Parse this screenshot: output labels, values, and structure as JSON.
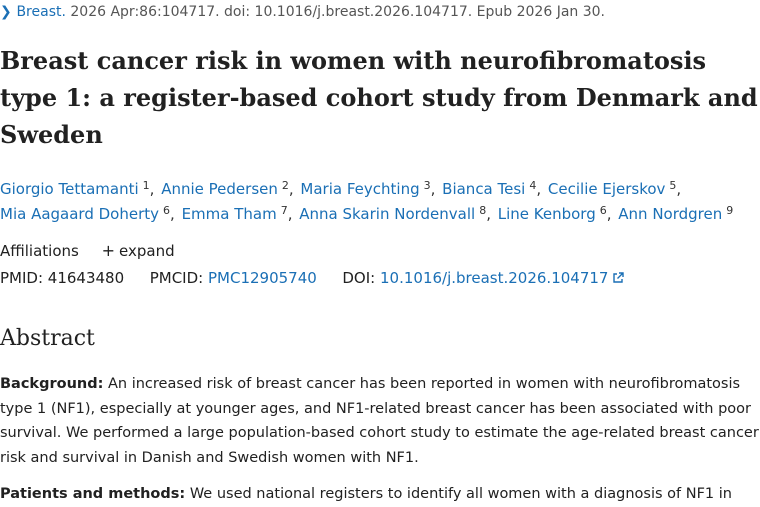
{
  "citation": {
    "journal": "Breast.",
    "details": "2026 Apr:86:104717. doi: 10.1016/j.breast.2026.104717. Epub 2026 Jan 30."
  },
  "title": "Breast cancer risk in women with neurofibromatosis type 1: a register-based cohort study from Denmark and Sweden",
  "authors": [
    {
      "name": "Giorgio Tettamanti",
      "affil": "1"
    },
    {
      "name": "Annie Pedersen",
      "affil": "2"
    },
    {
      "name": "Maria Feychting",
      "affil": "3"
    },
    {
      "name": "Bianca Tesi",
      "affil": "4"
    },
    {
      "name": "Cecilie Ejerskov",
      "affil": "5"
    },
    {
      "name": "Mia Aagaard Doherty",
      "affil": "6"
    },
    {
      "name": "Emma Tham",
      "affil": "7"
    },
    {
      "name": "Anna Skarin Nordenvall",
      "affil": "8"
    },
    {
      "name": "Line Kenborg",
      "affil": "6"
    },
    {
      "name": "Ann Nordgren",
      "affil": "9"
    }
  ],
  "affiliations": {
    "label": "Affiliations",
    "expand": "expand"
  },
  "identifiers": {
    "pmid_label": "PMID:",
    "pmid": "41643480",
    "pmcid_label": "PMCID:",
    "pmcid": "PMC12905740",
    "doi_label": "DOI:",
    "doi": "10.1016/j.breast.2026.104717"
  },
  "abstract": {
    "heading": "Abstract",
    "background_label": "Background:",
    "background_text": "An increased risk of breast cancer has been reported in women with neurofibromatosis type 1 (NF1), especially at younger ages, and NF1-related breast cancer has been associated with poor survival. We performed a large population-based cohort study to estimate the age-related breast cancer risk and survival in Danish and Swedish women with NF1.",
    "methods_label": "Patients and methods:",
    "methods_text": "We used national registers to identify all women with a diagnosis of NF1 in"
  },
  "colors": {
    "link": "#1a6fb5",
    "text": "#212121"
  },
  "icons": {
    "citation_chevron": "chevron-right-icon",
    "expand": "plus-icon",
    "doi_link": "external-link-icon"
  }
}
